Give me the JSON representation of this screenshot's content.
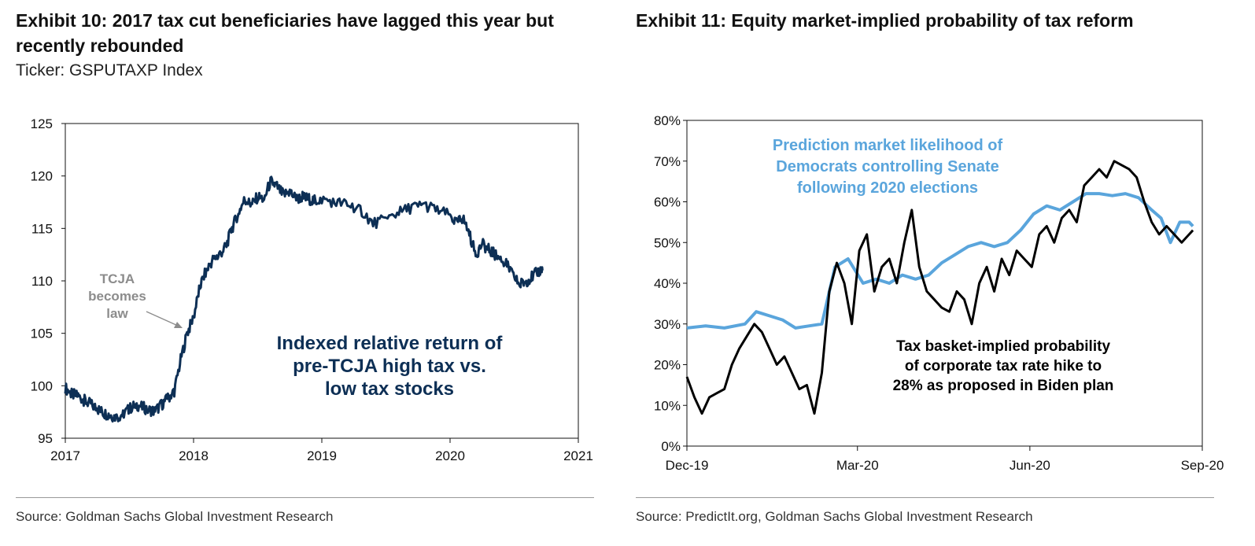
{
  "left": {
    "title": "Exhibit 10: 2017 tax cut beneficiaries have lagged this year but recently rebounded",
    "subtitle": "Ticker: GSPUTAXP Index",
    "source": "Source: Goldman Sachs Global Investment Research"
  },
  "right": {
    "title": "Exhibit 11: Equity market-implied probability of tax reform",
    "source": "Source: PredictIt.org, Goldman Sachs Global Investment Research"
  },
  "colors": {
    "navy": "#0d2f55",
    "blue": "#5aa5dc",
    "black": "#000000",
    "gray": "#8c8c8c"
  },
  "chart_data": [
    {
      "type": "line",
      "title": "Exhibit 10: 2017 tax cut beneficiaries have lagged this year but recently rebounded",
      "xlim": [
        2017,
        2021
      ],
      "ylim": [
        95,
        125
      ],
      "x_ticks": [
        "2017",
        "2018",
        "2019",
        "2020",
        "2021"
      ],
      "y_ticks": [
        "95",
        "100",
        "105",
        "110",
        "115",
        "120",
        "125"
      ],
      "grid": false,
      "series": [
        {
          "name": "Indexed relative return of pre-TCJA high tax vs. low tax stocks",
          "color": "#0d2f55",
          "x": [
            2017.0,
            2017.05,
            2017.1,
            2017.15,
            2017.2,
            2017.25,
            2017.3,
            2017.35,
            2017.4,
            2017.45,
            2017.5,
            2017.55,
            2017.6,
            2017.65,
            2017.7,
            2017.75,
            2017.8,
            2017.85,
            2017.9,
            2017.95,
            2018.0,
            2018.05,
            2018.1,
            2018.15,
            2018.2,
            2018.25,
            2018.3,
            2018.35,
            2018.4,
            2018.45,
            2018.5,
            2018.55,
            2018.6,
            2018.65,
            2018.7,
            2018.75,
            2018.8,
            2018.85,
            2018.9,
            2018.95,
            2019.0,
            2019.1,
            2019.2,
            2019.3,
            2019.4,
            2019.5,
            2019.6,
            2019.7,
            2019.8,
            2019.9,
            2020.0,
            2020.05,
            2020.1,
            2020.15,
            2020.2,
            2020.25,
            2020.3,
            2020.35,
            2020.4,
            2020.45,
            2020.5,
            2020.55,
            2020.6,
            2020.65,
            2020.7,
            2020.72
          ],
          "values": [
            99.8,
            99.2,
            99.0,
            98.6,
            98.2,
            97.8,
            97.4,
            97.2,
            97.0,
            97.3,
            97.8,
            98.2,
            98.0,
            97.7,
            97.6,
            98.2,
            98.8,
            99.5,
            102.5,
            105.0,
            106.5,
            109.5,
            111.0,
            112.0,
            112.5,
            113.2,
            115.0,
            116.5,
            117.8,
            117.2,
            118.0,
            117.8,
            119.5,
            119.0,
            118.2,
            118.5,
            117.8,
            118.0,
            117.8,
            117.6,
            117.8,
            117.5,
            117.3,
            116.8,
            115.5,
            115.8,
            116.5,
            117.0,
            117.2,
            116.8,
            116.2,
            115.5,
            116.0,
            114.5,
            112.5,
            113.5,
            113.0,
            112.5,
            112.0,
            111.5,
            110.2,
            109.7,
            110.0,
            110.5,
            111.0,
            111.0
          ]
        }
      ],
      "annotations": [
        {
          "text": [
            "TCJA",
            "becomes",
            "law"
          ],
          "color": "#8c8c8c"
        },
        {
          "text": [
            "Indexed relative return of",
            "pre-TCJA high tax vs.",
            "low tax stocks"
          ],
          "color": "#0d2f55"
        }
      ]
    },
    {
      "type": "line",
      "title": "Exhibit 11: Equity market-implied probability of tax reform",
      "xlim": [
        "2019-12-01",
        "2020-09-01"
      ],
      "ylim": [
        0,
        80
      ],
      "x_ticks": [
        "Dec-19",
        "Mar-20",
        "Jun-20",
        "Sep-20"
      ],
      "y_ticks": [
        "0%",
        "10%",
        "20%",
        "30%",
        "40%",
        "50%",
        "60%",
        "70%",
        "80%"
      ],
      "grid": false,
      "series": [
        {
          "name": "Prediction market likelihood of Democrats controlling Senate following 2020 elections",
          "color": "#5aa5dc",
          "x": [
            "2019-12-01",
            "2019-12-11",
            "2019-12-21",
            "2020-01-01",
            "2020-01-07",
            "2020-01-14",
            "2020-01-21",
            "2020-01-28",
            "2020-02-04",
            "2020-02-11",
            "2020-02-18",
            "2020-02-25",
            "2020-03-04",
            "2020-03-11",
            "2020-03-18",
            "2020-03-25",
            "2020-04-01",
            "2020-04-08",
            "2020-04-15",
            "2020-04-22",
            "2020-04-29",
            "2020-05-06",
            "2020-05-13",
            "2020-05-20",
            "2020-05-27",
            "2020-06-03",
            "2020-06-10",
            "2020-06-17",
            "2020-06-24",
            "2020-07-01",
            "2020-07-08",
            "2020-07-15",
            "2020-07-22",
            "2020-07-29",
            "2020-08-05",
            "2020-08-10",
            "2020-08-15",
            "2020-08-20",
            "2020-08-25",
            "2020-08-27"
          ],
          "values": [
            29,
            29.5,
            29,
            30,
            33,
            32,
            31,
            29,
            29.5,
            30,
            44,
            46,
            40,
            41,
            40,
            42,
            41,
            42,
            45,
            47,
            49,
            50,
            49,
            50,
            53,
            57,
            59,
            58,
            60,
            62,
            62,
            61.5,
            62,
            61,
            58,
            56,
            50,
            55,
            55,
            54
          ]
        },
        {
          "name": "Tax basket-implied probability of corporate tax rate hike to 28% as proposed in Biden plan",
          "color": "#000000",
          "x": [
            "2019-12-01",
            "2019-12-05",
            "2019-12-09",
            "2019-12-13",
            "2019-12-17",
            "2019-12-21",
            "2019-12-25",
            "2019-12-29",
            "2020-01-02",
            "2020-01-06",
            "2020-01-10",
            "2020-01-14",
            "2020-01-18",
            "2020-01-22",
            "2020-01-26",
            "2020-01-30",
            "2020-02-03",
            "2020-02-07",
            "2020-02-11",
            "2020-02-15",
            "2020-02-19",
            "2020-02-23",
            "2020-02-27",
            "2020-03-02",
            "2020-03-06",
            "2020-03-10",
            "2020-03-14",
            "2020-03-18",
            "2020-03-22",
            "2020-03-26",
            "2020-03-30",
            "2020-04-03",
            "2020-04-07",
            "2020-04-11",
            "2020-04-15",
            "2020-04-19",
            "2020-04-23",
            "2020-04-27",
            "2020-05-01",
            "2020-05-05",
            "2020-05-09",
            "2020-05-13",
            "2020-05-17",
            "2020-05-21",
            "2020-05-25",
            "2020-05-29",
            "2020-06-02",
            "2020-06-06",
            "2020-06-10",
            "2020-06-14",
            "2020-06-18",
            "2020-06-22",
            "2020-06-26",
            "2020-06-30",
            "2020-07-04",
            "2020-07-08",
            "2020-07-12",
            "2020-07-16",
            "2020-07-20",
            "2020-07-24",
            "2020-07-28",
            "2020-08-01",
            "2020-08-05",
            "2020-08-09",
            "2020-08-13",
            "2020-08-17",
            "2020-08-21",
            "2020-08-25",
            "2020-08-27"
          ],
          "values": [
            17,
            12,
            8,
            12,
            13,
            14,
            20,
            24,
            27,
            30,
            28,
            24,
            20,
            22,
            18,
            14,
            15,
            8,
            18,
            38,
            45,
            40,
            30,
            48,
            52,
            38,
            44,
            46,
            40,
            50,
            58,
            44,
            38,
            36,
            34,
            33,
            38,
            36,
            30,
            40,
            44,
            38,
            46,
            42,
            48,
            46,
            44,
            52,
            54,
            50,
            56,
            58,
            55,
            64,
            66,
            68,
            66,
            70,
            69,
            68,
            66,
            60,
            55,
            52,
            54,
            52,
            50,
            52,
            53
          ]
        }
      ],
      "annotations": [
        {
          "text": [
            "Prediction market likelihood of",
            "Democrats controlling Senate",
            "following 2020 elections"
          ],
          "color": "#5aa5dc"
        },
        {
          "text": [
            "Tax basket-implied probability",
            "of corporate tax rate hike to",
            "28% as proposed in Biden plan"
          ],
          "color": "#000000"
        }
      ]
    }
  ]
}
